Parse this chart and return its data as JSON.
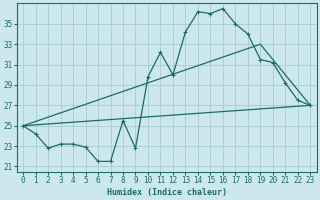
{
  "xlabel": "Humidex (Indice chaleur)",
  "bg_color": "#cce8ee",
  "grid_color": "#aacccc",
  "line_color": "#1a6b6b",
  "xlim": [
    -0.5,
    23.5
  ],
  "ylim": [
    20.5,
    37.0
  ],
  "yticks": [
    21,
    23,
    25,
    27,
    29,
    31,
    33,
    35
  ],
  "xticks": [
    0,
    1,
    2,
    3,
    4,
    5,
    6,
    7,
    8,
    9,
    10,
    11,
    12,
    13,
    14,
    15,
    16,
    17,
    18,
    19,
    20,
    21,
    22,
    23
  ],
  "line1_x": [
    0,
    1,
    2,
    3,
    4,
    5,
    6,
    7,
    8,
    9,
    10,
    11,
    12,
    13,
    14,
    15,
    16,
    17,
    18,
    19,
    20,
    21,
    22,
    23
  ],
  "line1_y": [
    25.0,
    24.2,
    22.8,
    23.2,
    23.2,
    22.9,
    21.5,
    21.5,
    25.5,
    22.8,
    29.8,
    32.2,
    30.0,
    34.2,
    36.2,
    36.0,
    36.5,
    35.0,
    34.0,
    31.5,
    31.2,
    29.2,
    27.5,
    27.0
  ],
  "line2_x": [
    0,
    23
  ],
  "line2_y": [
    25.0,
    27.0
  ],
  "line3_x": [
    0,
    19,
    23
  ],
  "line3_y": [
    25.0,
    33.0,
    27.0
  ]
}
